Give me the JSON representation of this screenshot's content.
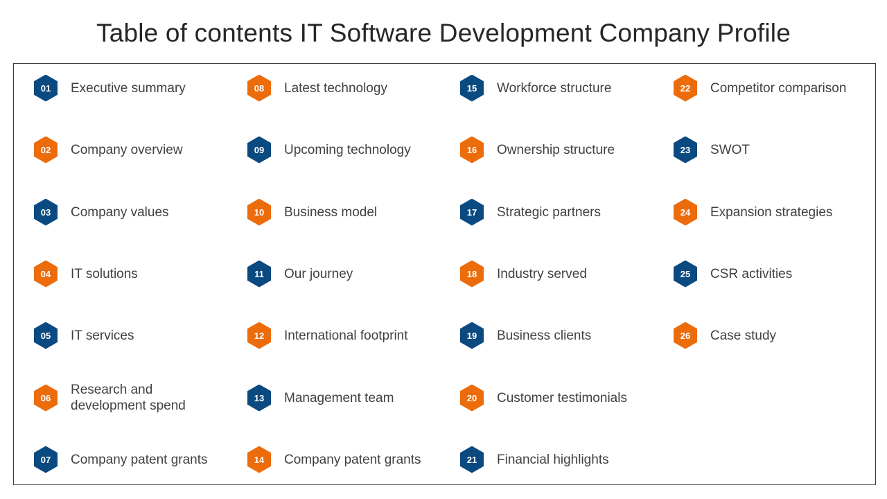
{
  "title": "Table of contents IT Software Development Company Profile",
  "colors": {
    "blue": "#0b4a80",
    "orange": "#ec6c0c"
  },
  "items": [
    {
      "num": "01",
      "label": "Executive summary",
      "color": "blue"
    },
    {
      "num": "02",
      "label": "Company overview",
      "color": "orange"
    },
    {
      "num": "03",
      "label": "Company values",
      "color": "blue"
    },
    {
      "num": "04",
      "label": "IT solutions",
      "color": "orange"
    },
    {
      "num": "05",
      "label": "IT services",
      "color": "blue"
    },
    {
      "num": "06",
      "label": "Research and\ndevelopment spend",
      "color": "orange"
    },
    {
      "num": "07",
      "label": "Company patent grants",
      "color": "blue"
    },
    {
      "num": "08",
      "label": "Latest technology",
      "color": "orange"
    },
    {
      "num": "09",
      "label": "Upcoming technology",
      "color": "blue"
    },
    {
      "num": "10",
      "label": "Business model",
      "color": "orange"
    },
    {
      "num": "11",
      "label": "Our journey",
      "color": "blue"
    },
    {
      "num": "12",
      "label": "International footprint",
      "color": "orange"
    },
    {
      "num": "13",
      "label": "Management team",
      "color": "blue"
    },
    {
      "num": "14",
      "label": "Company patent grants",
      "color": "orange"
    },
    {
      "num": "15",
      "label": "Workforce structure",
      "color": "blue"
    },
    {
      "num": "16",
      "label": "Ownership structure",
      "color": "orange"
    },
    {
      "num": "17",
      "label": "Strategic partners",
      "color": "blue"
    },
    {
      "num": "18",
      "label": "Industry served",
      "color": "orange"
    },
    {
      "num": "19",
      "label": "Business clients",
      "color": "blue"
    },
    {
      "num": "20",
      "label": "Customer testimonials",
      "color": "orange"
    },
    {
      "num": "21",
      "label": "Financial highlights",
      "color": "blue"
    },
    {
      "num": "22",
      "label": "Competitor comparison",
      "color": "orange"
    },
    {
      "num": "23",
      "label": "SWOT",
      "color": "blue"
    },
    {
      "num": "24",
      "label": "Expansion strategies",
      "color": "orange"
    },
    {
      "num": "25",
      "label": "CSR activities",
      "color": "blue"
    },
    {
      "num": "26",
      "label": "Case study",
      "color": "orange"
    }
  ]
}
